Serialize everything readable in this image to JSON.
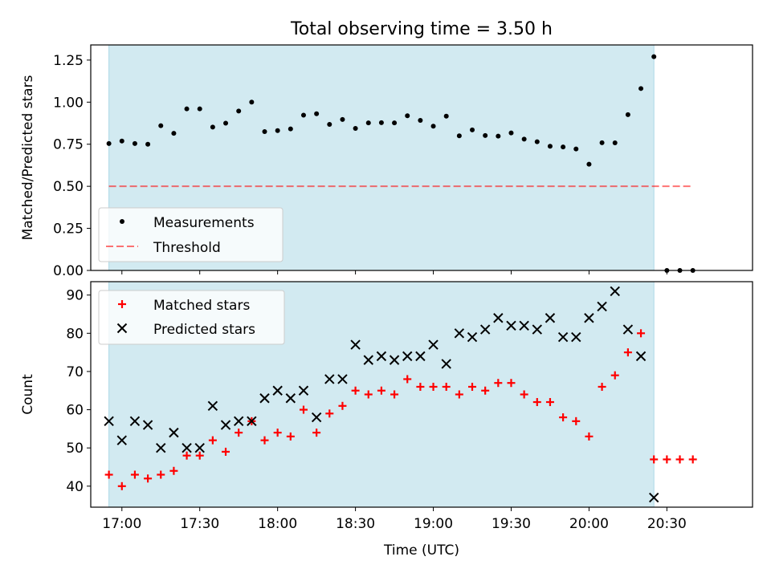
{
  "figure": {
    "title": "Total observing time = 3.50 h"
  },
  "colors": {
    "observing_band": "#add8e6",
    "measurements": "#000000",
    "threshold": "#ff0000",
    "matched": "#ff0000",
    "predicted": "#000000"
  },
  "chart_data": [
    {
      "type": "scatter",
      "panel": "top",
      "title": "Total observing time = 3.50 h",
      "ylabel": "Matched/Predicted stars",
      "xlabel": "",
      "xlim": [
        "16:48",
        "21:03"
      ],
      "ylim": [
        0,
        1.34
      ],
      "yticks": [
        0,
        0.25,
        0.5,
        0.75,
        1.0,
        1.25
      ],
      "ytick_labels": [
        "0.00",
        "0.25",
        "0.50",
        "0.75",
        "1.00",
        "1.25"
      ],
      "xticks": [
        "17:00",
        "17:30",
        "18:00",
        "18:30",
        "19:00",
        "19:30",
        "20:00",
        "20:30"
      ],
      "shaded_span": [
        "16:55",
        "20:25"
      ],
      "legend_position": "lower-left",
      "x": [
        "16:55",
        "17:00",
        "17:05",
        "17:10",
        "17:15",
        "17:20",
        "17:25",
        "17:30",
        "17:35",
        "17:40",
        "17:45",
        "17:50",
        "17:55",
        "18:00",
        "18:05",
        "18:10",
        "18:15",
        "18:20",
        "18:25",
        "18:30",
        "18:35",
        "18:40",
        "18:45",
        "18:50",
        "18:55",
        "19:00",
        "19:05",
        "19:10",
        "19:15",
        "19:20",
        "19:25",
        "19:30",
        "19:35",
        "19:40",
        "19:45",
        "19:50",
        "19:55",
        "20:00",
        "20:05",
        "20:10",
        "20:15",
        "20:20",
        "20:25",
        "20:30",
        "20:35",
        "20:40"
      ],
      "series": [
        {
          "name": "Measurements",
          "kind": "points",
          "values": [
            0.754,
            0.769,
            0.754,
            0.75,
            0.86,
            0.815,
            0.96,
            0.96,
            0.852,
            0.875,
            0.947,
            1.0,
            0.825,
            0.831,
            0.841,
            0.923,
            0.931,
            0.868,
            0.897,
            0.844,
            0.877,
            0.878,
            0.877,
            0.919,
            0.892,
            0.857,
            0.917,
            0.8,
            0.835,
            0.802,
            0.798,
            0.817,
            0.78,
            0.765,
            0.738,
            0.734,
            0.722,
            0.631,
            0.759,
            0.758,
            0.926,
            1.081,
            1.27,
            0.0,
            0.0,
            0.0
          ]
        },
        {
          "name": "Threshold",
          "kind": "dashed-line",
          "x_range": [
            "16:55",
            "20:40"
          ],
          "value": 0.5
        }
      ]
    },
    {
      "type": "scatter",
      "panel": "bottom",
      "ylabel": "Count",
      "xlabel": "Time (UTC)",
      "xlim": [
        "16:48",
        "21:03"
      ],
      "ylim": [
        34.5,
        93.5
      ],
      "yticks": [
        40,
        50,
        60,
        70,
        80,
        90
      ],
      "ytick_labels": [
        "40",
        "50",
        "60",
        "70",
        "80",
        "90"
      ],
      "xticks": [
        "17:00",
        "17:30",
        "18:00",
        "18:30",
        "19:00",
        "19:30",
        "20:00",
        "20:30"
      ],
      "shaded_span": [
        "16:55",
        "20:25"
      ],
      "legend_position": "upper-left",
      "series": [
        {
          "name": "Matched stars",
          "marker": "+",
          "x": [
            "16:55",
            "17:00",
            "17:05",
            "17:10",
            "17:15",
            "17:20",
            "17:25",
            "17:30",
            "17:35",
            "17:40",
            "17:45",
            "17:50",
            "17:55",
            "18:00",
            "18:05",
            "18:10",
            "18:15",
            "18:20",
            "18:25",
            "18:30",
            "18:35",
            "18:40",
            "18:45",
            "18:50",
            "18:55",
            "19:00",
            "19:05",
            "19:10",
            "19:15",
            "19:20",
            "19:25",
            "19:30",
            "19:35",
            "19:40",
            "19:45",
            "19:50",
            "19:55",
            "20:00",
            "20:05",
            "20:10",
            "20:15",
            "20:20",
            "20:25",
            "20:30",
            "20:35",
            "20:40"
          ],
          "values": [
            43,
            40,
            43,
            42,
            43,
            44,
            48,
            48,
            52,
            49,
            54,
            57,
            52,
            54,
            53,
            60,
            54,
            59,
            61,
            65,
            64,
            65,
            64,
            68,
            66,
            66,
            66,
            64,
            66,
            65,
            67,
            67,
            64,
            62,
            62,
            58,
            57,
            53,
            66,
            69,
            75,
            80,
            47,
            47,
            47,
            47
          ]
        },
        {
          "name": "Predicted stars",
          "marker": "x",
          "x": [
            "16:55",
            "17:00",
            "17:05",
            "17:10",
            "17:15",
            "17:20",
            "17:25",
            "17:30",
            "17:35",
            "17:40",
            "17:45",
            "17:50",
            "17:55",
            "18:00",
            "18:05",
            "18:10",
            "18:15",
            "18:20",
            "18:25",
            "18:30",
            "18:35",
            "18:40",
            "18:45",
            "18:50",
            "18:55",
            "19:00",
            "19:05",
            "19:10",
            "19:15",
            "19:20",
            "19:25",
            "19:30",
            "19:35",
            "19:40",
            "19:45",
            "19:50",
            "19:55",
            "20:00",
            "20:05",
            "20:10",
            "20:15",
            "20:20",
            "20:25"
          ],
          "values": [
            57,
            52,
            57,
            56,
            50,
            54,
            50,
            50,
            61,
            56,
            57,
            57,
            63,
            65,
            63,
            65,
            58,
            68,
            68,
            77,
            73,
            74,
            73,
            74,
            74,
            77,
            72,
            80,
            79,
            81,
            84,
            82,
            82,
            81,
            84,
            79,
            79,
            84,
            87,
            91,
            81,
            74,
            37
          ]
        }
      ]
    }
  ]
}
